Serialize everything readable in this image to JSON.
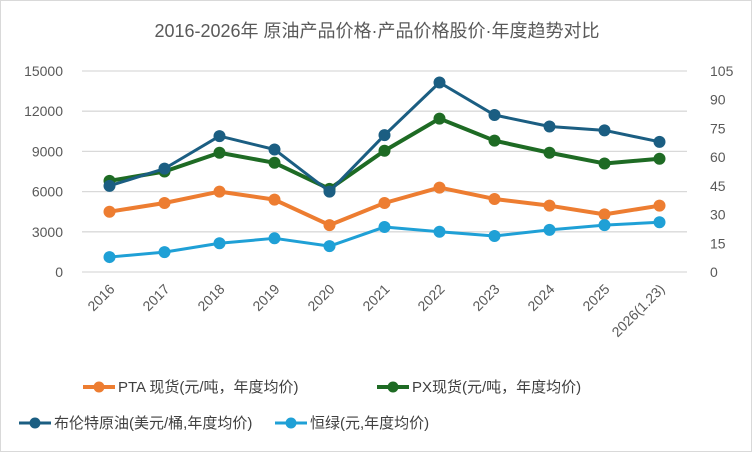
{
  "chart_data": {
    "type": "line",
    "title": "2016-2026年 原油产品价格·产品价格股价·年度趋势对比",
    "xlabel": "",
    "ylabel": "",
    "y2label": "",
    "categories": [
      "2016",
      "2017",
      "2018",
      "2019",
      "2020",
      "2021",
      "2022",
      "2023",
      "2024",
      "2025",
      "2026(1.23)"
    ],
    "ylim": [
      0,
      15000
    ],
    "yticks": [
      "0",
      "3000",
      "6000",
      "9000",
      "12000",
      "15000"
    ],
    "y2lim": [
      0,
      105
    ],
    "y2ticks": [
      "0",
      "15",
      "30",
      "45",
      "60",
      "75",
      "90",
      "105"
    ],
    "grid": true,
    "legend_position": "bottom",
    "series": [
      {
        "name": "PTA 现货(元/吨，年度均价)",
        "axis": "left",
        "color": "#ED7D31",
        "values": [
          4500,
          5150,
          6000,
          5400,
          3500,
          5150,
          6300,
          5450,
          4950,
          4300,
          4950
        ]
      },
      {
        "name": "PX现货(元/吨，年度均价)",
        "axis": "left",
        "color": "#1E6B24",
        "values": [
          6800,
          7500,
          8900,
          8150,
          6200,
          9050,
          11450,
          9800,
          8900,
          8100,
          8450
        ]
      },
      {
        "name": "布伦特原油(美元/桶,年度均价)",
        "axis": "right",
        "color": "#1B5E82",
        "values": [
          45,
          54,
          71,
          64,
          42,
          71.5,
          99,
          82,
          76,
          74,
          68
        ]
      },
      {
        "name": "恒绿(元,年度均价)",
        "axis": "right",
        "color": "#1FA0D6",
        "values": [
          7.8,
          10.4,
          15,
          17.6,
          13.5,
          23.5,
          21,
          18.8,
          22,
          24.5,
          26
        ]
      }
    ]
  }
}
